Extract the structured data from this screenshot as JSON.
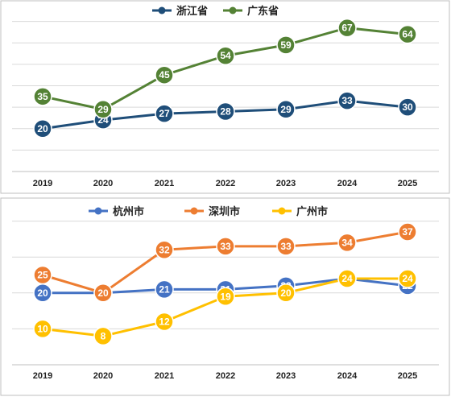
{
  "chart_data": [
    {
      "type": "line",
      "categories": [
        "2019",
        "2020",
        "2021",
        "2022",
        "2023",
        "2024",
        "2025"
      ],
      "series": [
        {
          "name": "浙江省",
          "color": "#1F4E79",
          "values": [
            20,
            24,
            27,
            28,
            29,
            33,
            30
          ]
        },
        {
          "name": "广东省",
          "color": "#548235",
          "values": [
            35,
            29,
            45,
            54,
            59,
            67,
            64
          ]
        }
      ],
      "ylim": [
        0,
        80
      ],
      "grid": true,
      "legend": "top-center",
      "data_labels": true
    },
    {
      "type": "line",
      "categories": [
        "2019",
        "2020",
        "2021",
        "2022",
        "2023",
        "2024",
        "2025"
      ],
      "series": [
        {
          "name": "杭州市",
          "color": "#4472C4",
          "values": [
            20,
            20,
            21,
            21,
            22,
            24,
            22
          ]
        },
        {
          "name": "深圳市",
          "color": "#ED7D31",
          "values": [
            25,
            20,
            32,
            33,
            33,
            34,
            37
          ]
        },
        {
          "name": "广州市",
          "color": "#FFC000",
          "values": [
            10,
            8,
            12,
            19,
            20,
            24,
            24
          ]
        }
      ],
      "ylim": [
        0,
        50
      ],
      "grid": true,
      "legend": "top-center",
      "data_labels": true
    }
  ]
}
